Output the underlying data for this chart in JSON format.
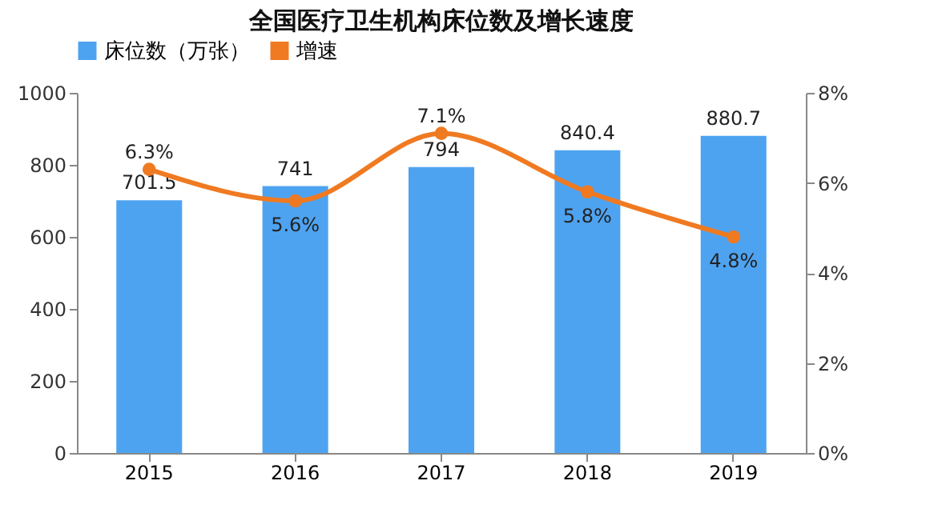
{
  "chart_data": {
    "type": "bar",
    "title": "全国医疗卫生机构床位数及增长速度",
    "categories": [
      "2015",
      "2016",
      "2017",
      "2018",
      "2019"
    ],
    "series": [
      {
        "name": "床位数（万张）",
        "color": "#4ea3f1",
        "values": [
          701.5,
          741,
          794,
          840.4,
          880.7
        ],
        "value_labels": [
          "701.5",
          "741",
          "794",
          "840.4",
          "880.7"
        ]
      },
      {
        "name": "增速",
        "type": "line",
        "axis": "y2",
        "color": "#f07a22",
        "values": [
          6.3,
          5.6,
          7.1,
          5.8,
          4.8
        ],
        "value_labels": [
          "6.3%",
          "5.6%",
          "7.1%",
          "5.8%",
          "4.8%"
        ]
      }
    ],
    "ylim": [
      0,
      1000
    ],
    "yticks": [
      0,
      200,
      400,
      600,
      800,
      1000
    ],
    "y2lim": [
      0,
      8
    ],
    "y2ticks": [
      {
        "value": 0,
        "label": "0%"
      },
      {
        "value": 2,
        "label": "2%"
      },
      {
        "value": 4,
        "label": "4%"
      },
      {
        "value": 6,
        "label": "6%"
      },
      {
        "value": 8,
        "label": "8%"
      }
    ],
    "grid": false,
    "legend": "top",
    "marker": "circle",
    "line_style": "solid"
  }
}
